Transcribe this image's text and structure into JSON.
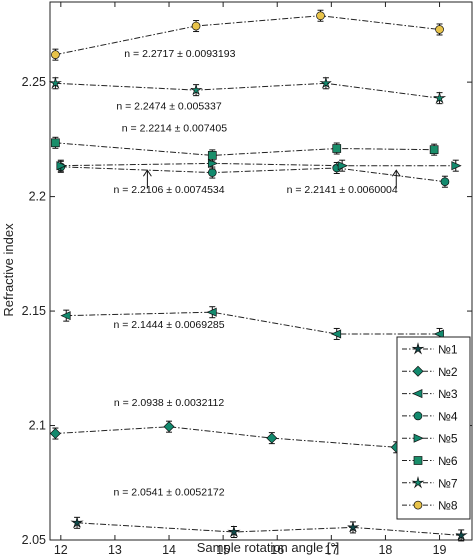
{
  "chart_data": {
    "type": "line",
    "xlabel": "Sample rotation angle [°]",
    "ylabel": "Refractive index",
    "xlim": [
      11.8,
      19.6
    ],
    "ylim": [
      2.05,
      2.285
    ],
    "xticks": [
      "12",
      "13",
      "14",
      "15",
      "16",
      "17",
      "18",
      "19"
    ],
    "yticks": [
      "2.05",
      "2.1",
      "2.15",
      "2.2",
      "2.25"
    ],
    "legend_position": "right",
    "series": [
      {
        "name": "№1",
        "marker": "star",
        "color": "#0e4b4b",
        "x": [
          12.3,
          15.2,
          17.4,
          19.4
        ],
        "y": [
          2.0575,
          2.0535,
          2.0555,
          2.052
        ]
      },
      {
        "name": "№2",
        "marker": "diamond",
        "color": "#138a6e",
        "x": [
          11.9,
          14.0,
          15.9,
          18.2
        ],
        "y": [
          2.0965,
          2.0995,
          2.0945,
          2.0905
        ]
      },
      {
        "name": "№3",
        "marker": "triangle-left",
        "color": "#138a6e",
        "x": [
          12.1,
          14.8,
          17.1,
          19.0
        ],
        "y": [
          2.148,
          2.1495,
          2.14,
          2.14
        ]
      },
      {
        "name": "№4",
        "marker": "circle",
        "color": "#138a6e",
        "x": [
          12.0,
          14.8,
          17.1,
          19.1
        ],
        "y": [
          2.213,
          2.2105,
          2.2125,
          2.2065
        ]
      },
      {
        "name": "№5",
        "marker": "triangle-right",
        "color": "#138a6e",
        "x": [
          12.0,
          14.8,
          17.2,
          19.3
        ],
        "y": [
          2.2135,
          2.2145,
          2.2135,
          2.2135
        ]
      },
      {
        "name": "№6",
        "marker": "square",
        "color": "#1a8e6a",
        "x": [
          11.9,
          14.8,
          17.1,
          18.9
        ],
        "y": [
          2.2235,
          2.218,
          2.221,
          2.2205
        ]
      },
      {
        "name": "№7",
        "marker": "star",
        "color": "#138a6e",
        "x": [
          11.9,
          14.5,
          16.9,
          19.0
        ],
        "y": [
          2.2495,
          2.2465,
          2.2495,
          2.243
        ]
      },
      {
        "name": "№8",
        "marker": "circle",
        "color": "#e8c34a",
        "x": [
          11.9,
          14.5,
          16.8,
          19.0
        ],
        "y": [
          2.262,
          2.2745,
          2.279,
          2.273
        ]
      }
    ],
    "annotations": [
      {
        "text": "n = 2.2717 ± 0.0093193",
        "x": 14.2,
        "y": 2.261
      },
      {
        "text": "n = 2.2474 ± 0.005337",
        "x": 14.0,
        "y": 2.238
      },
      {
        "text": "n = 2.2214 ± 0.007405",
        "x": 14.1,
        "y": 2.2285
      },
      {
        "text": "n = 2.2106 ± 0.0074534",
        "x": 14.0,
        "y": 2.2015
      },
      {
        "text": "n = 2.2141 ± 0.0060004",
        "x": 17.2,
        "y": 2.2015
      },
      {
        "text": "n = 2.1444 ± 0.0069285",
        "x": 14.0,
        "y": 2.1425
      },
      {
        "text": "n = 2.0938 ± 0.0032112",
        "x": 14.0,
        "y": 2.1085
      },
      {
        "text": "n = 2.0541 ± 0.0052172",
        "x": 14.0,
        "y": 2.0695
      }
    ],
    "arrows": [
      {
        "from": [
          13.6,
          2.2035
        ],
        "to": [
          13.6,
          2.2115
        ]
      },
      {
        "from": [
          18.2,
          2.2035
        ],
        "to": [
          18.2,
          2.2115
        ]
      }
    ]
  }
}
